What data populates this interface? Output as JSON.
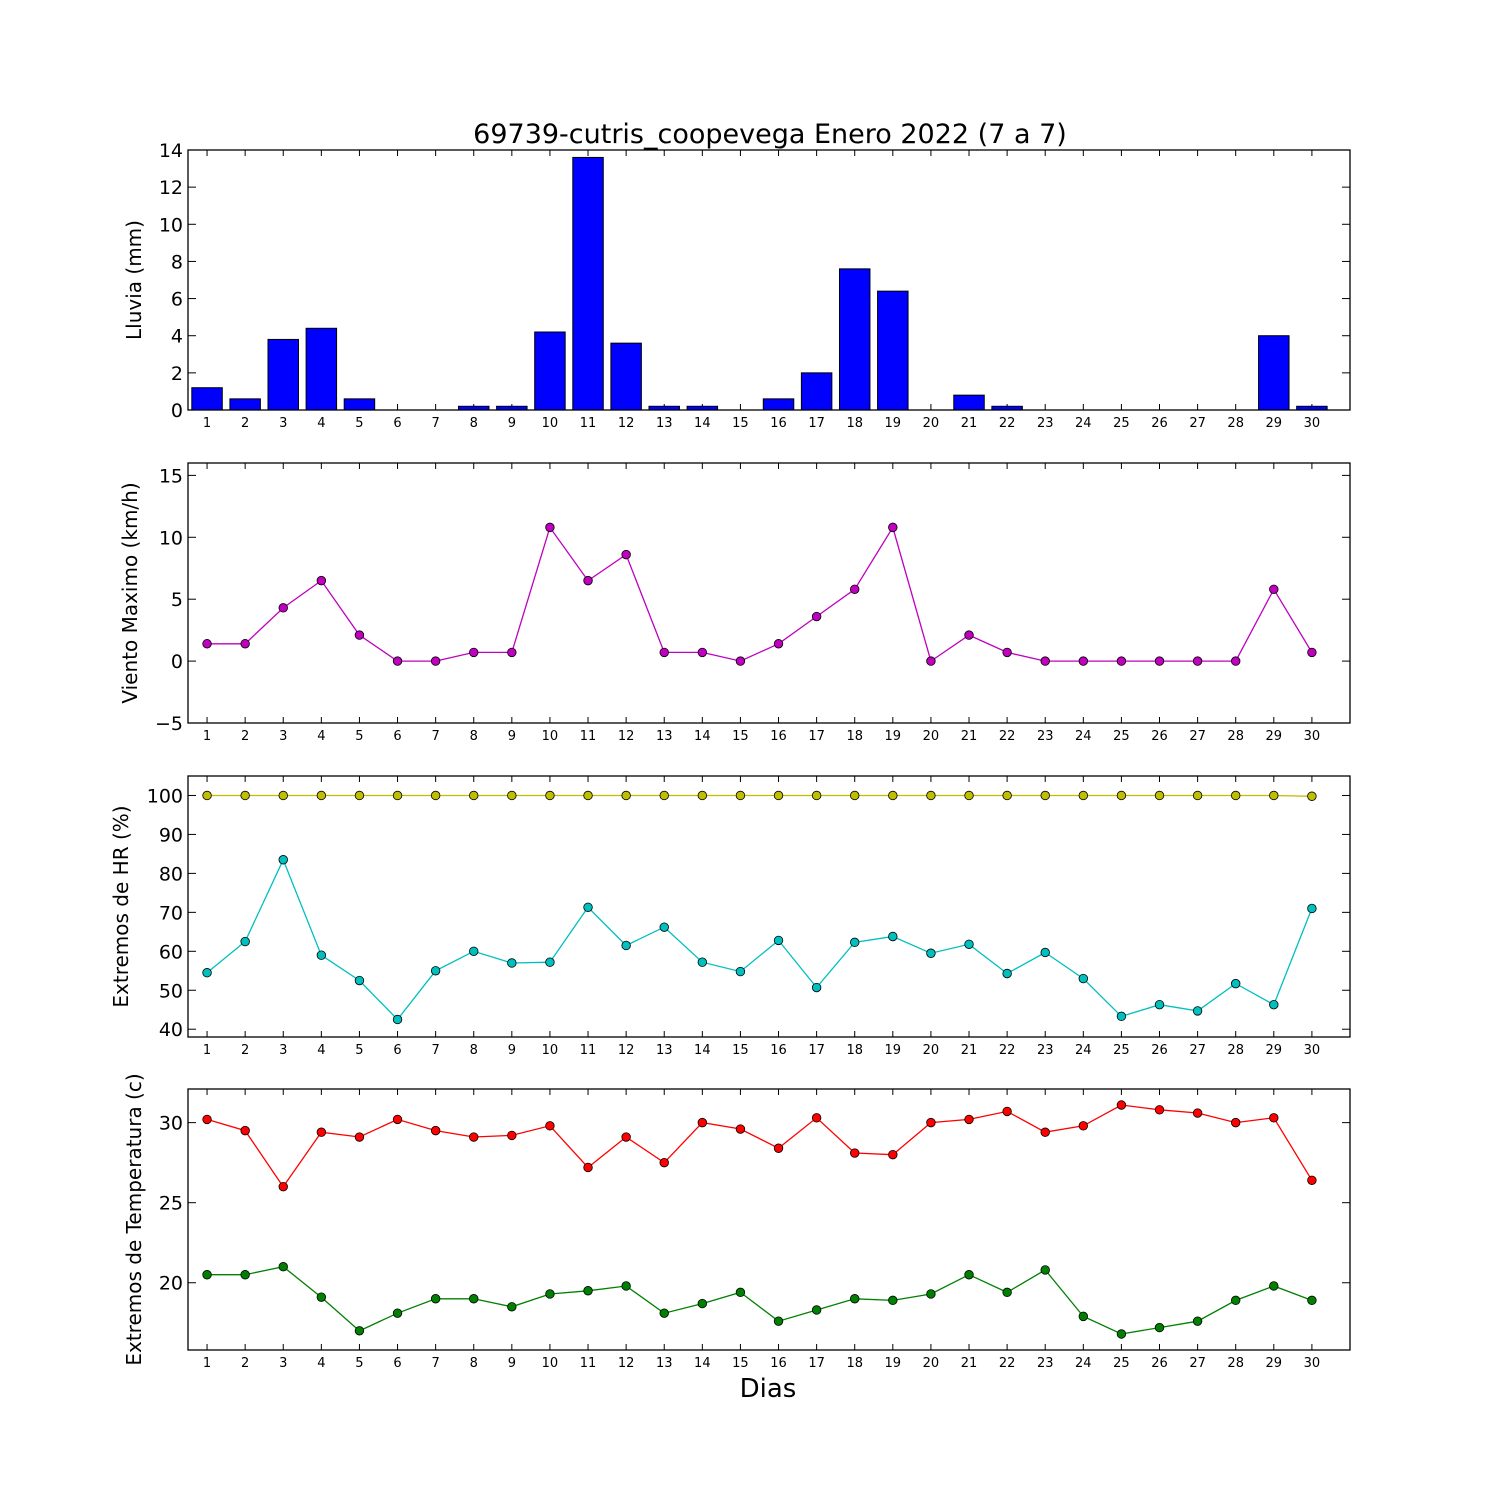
{
  "figure": {
    "title": "69739-cutris_coopevega Enero 2022  (7 a 7)",
    "xlabel": "Dias"
  },
  "chart_data": [
    {
      "type": "bar",
      "ylabel": "Lluvia (mm)",
      "ylim": [
        0,
        14
      ],
      "yticks": [
        0,
        2,
        4,
        6,
        8,
        10,
        12,
        14
      ],
      "categories": [
        1,
        2,
        3,
        4,
        5,
        6,
        7,
        8,
        9,
        10,
        11,
        12,
        13,
        14,
        15,
        16,
        17,
        18,
        19,
        20,
        21,
        22,
        23,
        24,
        25,
        26,
        27,
        28,
        29,
        30
      ],
      "series": [
        {
          "color": "#0000ff",
          "values": [
            1.2,
            0.6,
            3.8,
            4.4,
            0.6,
            0,
            0,
            0.2,
            0.2,
            4.2,
            13.6,
            3.6,
            0.2,
            0.2,
            0,
            0.6,
            2.0,
            7.6,
            6.4,
            0,
            0.8,
            0.2,
            0,
            0,
            0,
            0,
            0,
            0,
            4.0,
            0.2
          ]
        }
      ]
    },
    {
      "type": "line",
      "ylabel": "Viento Maximo (km/h)",
      "ylim": [
        -5,
        16
      ],
      "yticks": [
        -5,
        0,
        5,
        10,
        15
      ],
      "ytick_labels": [
        "−5",
        "0",
        "5",
        "10",
        "15"
      ],
      "categories": [
        1,
        2,
        3,
        4,
        5,
        6,
        7,
        8,
        9,
        10,
        11,
        12,
        13,
        14,
        15,
        16,
        17,
        18,
        19,
        20,
        21,
        22,
        23,
        24,
        25,
        26,
        27,
        28,
        29,
        30
      ],
      "series": [
        {
          "color": "#bf00bf",
          "values": [
            1.4,
            1.4,
            4.3,
            6.5,
            2.1,
            0,
            0,
            0.7,
            0.7,
            10.8,
            6.5,
            8.6,
            0.7,
            0.7,
            0,
            1.4,
            3.6,
            5.8,
            10.8,
            0,
            2.1,
            0.7,
            0,
            0,
            0,
            0,
            0,
            0,
            5.8,
            0.7
          ]
        }
      ]
    },
    {
      "type": "line",
      "ylabel": "Extremos de HR (%)",
      "ylim": [
        38,
        105
      ],
      "yticks": [
        40,
        50,
        60,
        70,
        80,
        90,
        100
      ],
      "categories": [
        1,
        2,
        3,
        4,
        5,
        6,
        7,
        8,
        9,
        10,
        11,
        12,
        13,
        14,
        15,
        16,
        17,
        18,
        19,
        20,
        21,
        22,
        23,
        24,
        25,
        26,
        27,
        28,
        29,
        30
      ],
      "series": [
        {
          "color": "#bfbf00",
          "values": [
            100,
            100,
            100,
            100,
            100,
            100,
            100,
            100,
            100,
            100,
            100,
            100,
            100,
            100,
            100,
            100,
            100,
            100,
            100,
            100,
            100,
            100,
            100,
            100,
            100,
            100,
            100,
            100,
            100,
            99.8
          ]
        },
        {
          "color": "#00bfbf",
          "values": [
            54.5,
            62.5,
            83.5,
            59,
            52.5,
            42.5,
            55,
            60,
            57,
            57.2,
            71.3,
            61.5,
            66.2,
            57.2,
            54.8,
            62.8,
            50.7,
            62.3,
            63.8,
            59.5,
            61.8,
            54.3,
            59.7,
            53,
            43.3,
            46.3,
            44.7,
            51.7,
            46.3,
            71
          ]
        }
      ]
    },
    {
      "type": "line",
      "ylabel": "Extremos de Temperatura (c)",
      "ylim": [
        15.8,
        32.1
      ],
      "yticks": [
        20,
        25,
        30
      ],
      "categories": [
        1,
        2,
        3,
        4,
        5,
        6,
        7,
        8,
        9,
        10,
        11,
        12,
        13,
        14,
        15,
        16,
        17,
        18,
        19,
        20,
        21,
        22,
        23,
        24,
        25,
        26,
        27,
        28,
        29,
        30
      ],
      "series": [
        {
          "color": "#ff0000",
          "values": [
            30.2,
            29.5,
            26,
            29.4,
            29.1,
            30.2,
            29.5,
            29.1,
            29.2,
            29.8,
            27.2,
            29.1,
            27.5,
            30,
            29.6,
            28.4,
            30.3,
            28.1,
            28,
            30,
            30.2,
            30.7,
            29.4,
            29.8,
            31.1,
            30.8,
            30.6,
            30,
            30.3,
            26.4
          ]
        },
        {
          "color": "#008000",
          "values": [
            20.5,
            20.5,
            21,
            19.1,
            17,
            18.1,
            19,
            19,
            18.5,
            19.3,
            19.5,
            19.8,
            18.1,
            18.7,
            19.4,
            17.6,
            18.3,
            19,
            18.9,
            19.3,
            20.5,
            19.4,
            20.8,
            17.9,
            16.8,
            17.2,
            17.6,
            18.9,
            19.8,
            18.9
          ]
        }
      ]
    }
  ]
}
